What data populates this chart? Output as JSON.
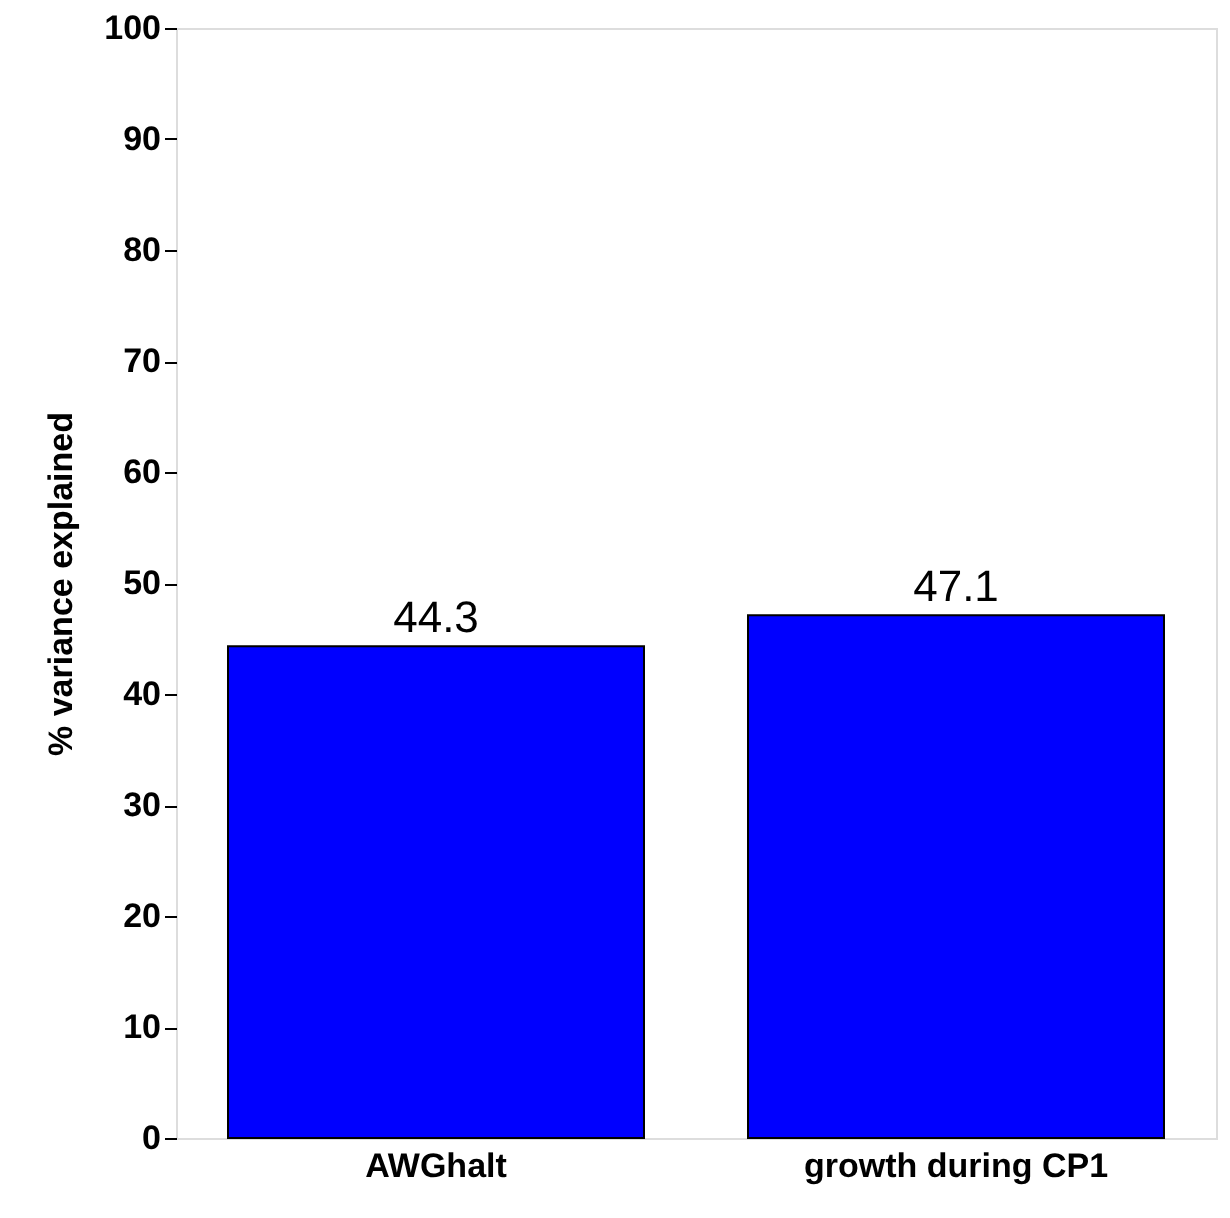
{
  "chart_data": {
    "type": "bar",
    "ylabel": "% variance explained",
    "categories": [
      "AWGhalt",
      "growth during CP1"
    ],
    "values": [
      44.3,
      47.1
    ],
    "color": "#0000ff",
    "ylim": [
      0,
      100
    ],
    "yticks": [
      0,
      10,
      20,
      30,
      40,
      50,
      60,
      70,
      80,
      90,
      100
    ],
    "grid": false,
    "data_labels": true
  }
}
